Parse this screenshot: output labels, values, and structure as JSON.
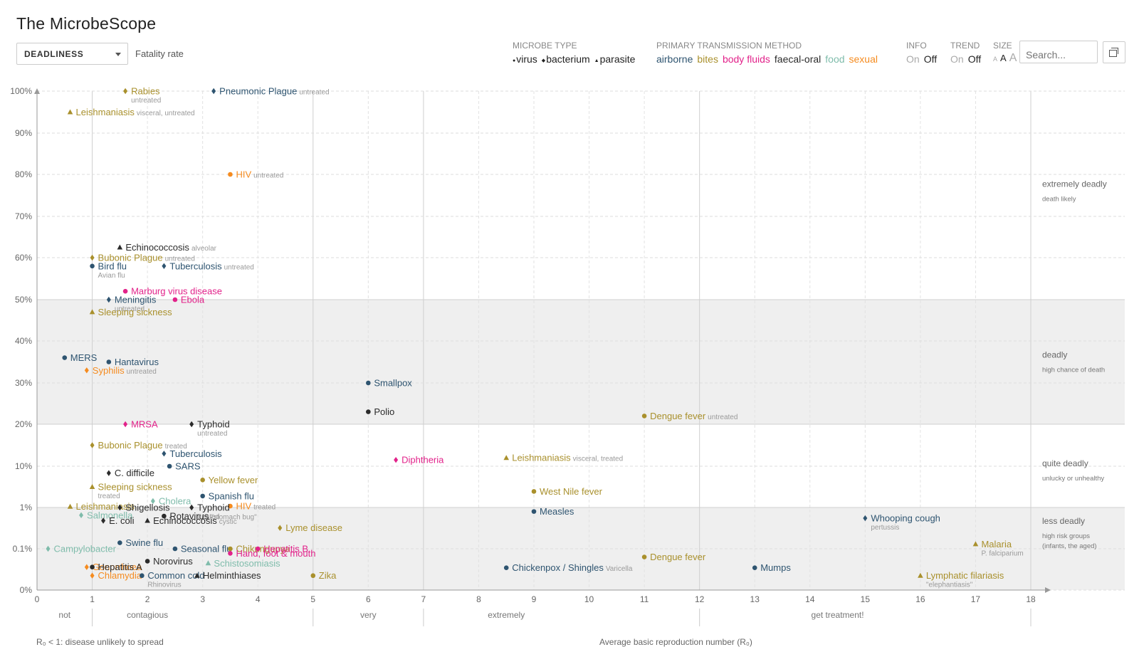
{
  "header": {
    "title": "The MicrobeScope",
    "dropdown_value": "DEADLINESS",
    "dropdown_label": "Fatality rate"
  },
  "filters": {
    "microbe_type": {
      "label": "MICROBE TYPE",
      "items": [
        "virus",
        "bacterium",
        "parasite"
      ]
    },
    "transmission": {
      "label": "PRIMARY TRANSMISSION METHOD",
      "items": [
        {
          "name": "airborne",
          "color": "#2e5470"
        },
        {
          "name": "bites",
          "color": "#a9902c"
        },
        {
          "name": "body fluids",
          "color": "#e2228a"
        },
        {
          "name": "faecal-oral",
          "color": "#2b2b2b"
        },
        {
          "name": "food",
          "color": "#7fbcab"
        },
        {
          "name": "sexual",
          "color": "#f58b1f"
        }
      ]
    },
    "info": {
      "label": "INFO",
      "on": "On",
      "off": "Off"
    },
    "trend": {
      "label": "TREND",
      "on": "On",
      "off": "Off"
    },
    "size": {
      "label": "SIZE",
      "options": [
        "A",
        "A",
        "A"
      ]
    }
  },
  "search": {
    "placeholder": "Search..."
  },
  "bottom": {
    "left": "R₀ < 1: disease unlikely to spread",
    "right": "Average basic reproduction number (R₀)"
  },
  "chart_data": {
    "type": "scatter",
    "title": "The MicrobeScope",
    "xlabel": "Average basic reproduction number (R₀)",
    "ylabel": "Fatality rate",
    "xlim": [
      0,
      18
    ],
    "x_ticks": [
      0,
      1,
      2,
      3,
      4,
      5,
      6,
      7,
      8,
      9,
      10,
      11,
      12,
      13,
      14,
      15,
      16,
      17,
      18
    ],
    "y_ticks": [
      "0%",
      "0.1%",
      "1%",
      "10%",
      "20%",
      "30%",
      "40%",
      "50%",
      "60%",
      "70%",
      "80%",
      "90%",
      "100%"
    ],
    "y_tick_values": [
      0,
      0.1,
      1,
      10,
      20,
      30,
      40,
      50,
      60,
      70,
      80,
      90,
      100
    ],
    "x_band_labels": [
      {
        "text": "not",
        "x": 0.5
      },
      {
        "text": "contagious",
        "x": 2.0
      },
      {
        "text": "very",
        "x": 6.0
      },
      {
        "text": "extremely",
        "x": 8.5
      },
      {
        "text": "get treatment!",
        "x": 14.5
      }
    ],
    "zones": [
      {
        "label": "extremely deadly",
        "sub": "death likely",
        "y_at": 77,
        "shaded": false
      },
      {
        "label": "deadly",
        "sub": "high chance of death",
        "y_at": 36,
        "shaded": true
      },
      {
        "label": "quite deadly",
        "sub": "unlucky or unhealthy",
        "y_at": 10,
        "shaded": false
      },
      {
        "label": "less deadly",
        "sub": "high risk groups (infants, the aged)",
        "y_at": 0.4,
        "shaded": true
      }
    ],
    "points": [
      {
        "name": "Rabies",
        "note": "untreated",
        "below": true,
        "x": 1.6,
        "y": 100,
        "type": "bacterium",
        "transmission": "bites"
      },
      {
        "name": "Pneumonic Plague",
        "note": "untreated",
        "x": 3.2,
        "y": 100,
        "type": "bacterium",
        "transmission": "airborne"
      },
      {
        "name": "Leishmaniasis",
        "note": "visceral, untreated",
        "x": 0.6,
        "y": 95,
        "type": "parasite",
        "transmission": "bites"
      },
      {
        "name": "HIV",
        "note": "untreated",
        "x": 3.5,
        "y": 80,
        "type": "virus",
        "transmission": "sexual"
      },
      {
        "name": "Echinococcosis",
        "note": "alveolar",
        "x": 1.5,
        "y": 62.5,
        "type": "parasite",
        "transmission": "faecal-oral"
      },
      {
        "name": "Bubonic Plague",
        "note": "untreated",
        "x": 1.0,
        "y": 60,
        "type": "bacterium",
        "transmission": "bites"
      },
      {
        "name": "Bird flu",
        "note": "Avian flu",
        "below": true,
        "x": 1.0,
        "y": 58,
        "type": "virus",
        "transmission": "airborne"
      },
      {
        "name": "Tuberculosis",
        "note": "untreated",
        "x": 2.3,
        "y": 58,
        "type": "bacterium",
        "transmission": "airborne"
      },
      {
        "name": "Marburg virus disease",
        "note": "",
        "x": 1.6,
        "y": 52,
        "type": "virus",
        "transmission": "body fluids"
      },
      {
        "name": "Meningitis",
        "note": "untreated",
        "below": true,
        "x": 1.3,
        "y": 50,
        "type": "bacterium",
        "transmission": "airborne"
      },
      {
        "name": "Ebola",
        "note": "",
        "x": 2.5,
        "y": 50,
        "type": "virus",
        "transmission": "body fluids"
      },
      {
        "name": "Sleeping sickness",
        "note": "",
        "x": 1.0,
        "y": 47,
        "type": "parasite",
        "transmission": "bites"
      },
      {
        "name": "MERS",
        "note": "",
        "x": 0.5,
        "y": 36,
        "type": "virus",
        "transmission": "airborne"
      },
      {
        "name": "Hantavirus",
        "note": "",
        "x": 1.3,
        "y": 35,
        "type": "virus",
        "transmission": "airborne"
      },
      {
        "name": "Syphilis",
        "note": "untreated",
        "x": 0.9,
        "y": 33,
        "type": "bacterium",
        "transmission": "sexual"
      },
      {
        "name": "Smallpox",
        "note": "",
        "x": 6.0,
        "y": 30,
        "type": "virus",
        "transmission": "airborne"
      },
      {
        "name": "Polio",
        "note": "",
        "x": 6.0,
        "y": 23,
        "type": "virus",
        "transmission": "faecal-oral"
      },
      {
        "name": "Dengue fever",
        "note": "untreated",
        "x": 11.0,
        "y": 22,
        "type": "virus",
        "transmission": "bites"
      },
      {
        "name": "MRSA",
        "note": "",
        "x": 1.6,
        "y": 20,
        "type": "bacterium",
        "transmission": "body fluids"
      },
      {
        "name": "Typhoid",
        "note": "untreated",
        "below": true,
        "x": 2.8,
        "y": 20,
        "type": "bacterium",
        "transmission": "faecal-oral"
      },
      {
        "name": "Bubonic Plague",
        "note": "treated",
        "x": 1.0,
        "y": 15,
        "type": "bacterium",
        "transmission": "bites"
      },
      {
        "name": "Tuberculosis",
        "note": "",
        "x": 2.3,
        "y": 13,
        "type": "bacterium",
        "transmission": "airborne"
      },
      {
        "name": "Diphtheria",
        "note": "",
        "x": 6.5,
        "y": 11.5,
        "type": "bacterium",
        "transmission": "body fluids"
      },
      {
        "name": "Leishmaniasis",
        "note": "visceral, treated",
        "x": 8.5,
        "y": 12,
        "type": "parasite",
        "transmission": "bites"
      },
      {
        "name": "SARS",
        "note": "",
        "x": 2.4,
        "y": 10,
        "type": "virus",
        "transmission": "airborne"
      },
      {
        "name": "C. difficile",
        "note": "",
        "x": 1.3,
        "y": 8.5,
        "type": "bacterium",
        "transmission": "faecal-oral"
      },
      {
        "name": "Yellow fever",
        "note": "",
        "x": 3.0,
        "y": 7,
        "type": "virus",
        "transmission": "bites"
      },
      {
        "name": "Sleeping sickness",
        "note": "treated",
        "below": true,
        "x": 1.0,
        "y": 5.5,
        "type": "parasite",
        "transmission": "bites"
      },
      {
        "name": "West Nile fever",
        "note": "",
        "x": 9.0,
        "y": 4.5,
        "type": "virus",
        "transmission": "bites"
      },
      {
        "name": "Spanish flu",
        "note": "",
        "x": 3.0,
        "y": 3.5,
        "type": "virus",
        "transmission": "airborne"
      },
      {
        "name": "Cholera",
        "note": "",
        "x": 2.1,
        "y": 2.4,
        "type": "bacterium",
        "transmission": "food"
      },
      {
        "name": "Leishmaniasis",
        "note": "",
        "x": 0.6,
        "y": 1.2,
        "type": "parasite",
        "transmission": "bites"
      },
      {
        "name": "HIV",
        "note": "treated",
        "x": 3.5,
        "y": 1.3,
        "type": "virus",
        "transmission": "sexual"
      },
      {
        "name": "Shigellosis",
        "note": "",
        "x": 1.5,
        "y": 1.0,
        "type": "bacterium",
        "transmission": "faecal-oral"
      },
      {
        "name": "Typhoid",
        "note": "treated",
        "below": true,
        "x": 2.8,
        "y": 1.0,
        "type": "bacterium",
        "transmission": "faecal-oral"
      },
      {
        "name": "Measles",
        "note": "",
        "x": 9.0,
        "y": 0.8,
        "type": "virus",
        "transmission": "airborne"
      },
      {
        "name": "Salmonella",
        "note": "",
        "x": 0.8,
        "y": 0.65,
        "type": "bacterium",
        "transmission": "food"
      },
      {
        "name": "Rotavirus",
        "note": "\"stomach bug\"",
        "x": 2.3,
        "y": 0.62,
        "type": "virus",
        "transmission": "faecal-oral"
      },
      {
        "name": "Whooping cough",
        "note": "pertussis",
        "below": true,
        "x": 15.0,
        "y": 0.55,
        "type": "bacterium",
        "transmission": "airborne"
      },
      {
        "name": "E. coli",
        "note": "",
        "x": 1.2,
        "y": 0.48,
        "type": "bacterium",
        "transmission": "faecal-oral"
      },
      {
        "name": "Echinococcosis",
        "note": "cystic",
        "x": 2.0,
        "y": 0.48,
        "type": "parasite",
        "transmission": "faecal-oral"
      },
      {
        "name": "Lyme disease",
        "note": "",
        "x": 4.4,
        "y": 0.32,
        "type": "bacterium",
        "transmission": "bites"
      },
      {
        "name": "Swine flu",
        "note": "",
        "x": 1.5,
        "y": 0.14,
        "type": "virus",
        "transmission": "airborne"
      },
      {
        "name": "Malaria",
        "note": "P. falciparium",
        "below": true,
        "x": 17.0,
        "y": 0.13,
        "type": "parasite",
        "transmission": "bites"
      },
      {
        "name": "Campylobacter",
        "note": "",
        "x": 0.2,
        "y": 0.1,
        "type": "bacterium",
        "transmission": "food"
      },
      {
        "name": "Seasonal flu",
        "note": "",
        "x": 2.5,
        "y": 0.1,
        "type": "virus",
        "transmission": "airborne"
      },
      {
        "name": "Chikungunya",
        "note": "",
        "x": 3.5,
        "y": 0.1,
        "type": "virus",
        "transmission": "bites"
      },
      {
        "name": "Hepatitis B",
        "note": "",
        "x": 4.0,
        "y": 0.1,
        "type": "virus",
        "transmission": "body fluids"
      },
      {
        "name": "Hand, foot & mouth",
        "note": "",
        "x": 3.5,
        "y": 0.06,
        "type": "virus",
        "transmission": "body fluids"
      },
      {
        "name": "Dengue fever",
        "note": "",
        "x": 11.0,
        "y": 0.04,
        "type": "virus",
        "transmission": "bites"
      },
      {
        "name": "Norovirus",
        "note": "",
        "x": 2.0,
        "y": 0.025,
        "type": "virus",
        "transmission": "faecal-oral"
      },
      {
        "name": "Schistosomiasis",
        "note": "",
        "x": 3.1,
        "y": 0.02,
        "type": "parasite",
        "transmission": "food"
      },
      {
        "name": "Chickenpox / Shingles",
        "note": "Varicella",
        "x": 8.5,
        "y": 0.012,
        "type": "virus",
        "transmission": "airborne"
      },
      {
        "name": "Mumps",
        "note": "",
        "x": 13.0,
        "y": 0.012,
        "type": "virus",
        "transmission": "airborne"
      },
      {
        "name": "Gonorrhoea",
        "note": "",
        "x": 0.9,
        "y": 0.013,
        "type": "bacterium",
        "transmission": "sexual"
      },
      {
        "name": "Hepatitis A",
        "note": "",
        "x": 1.0,
        "y": 0.013,
        "type": "virus",
        "transmission": "faecal-oral"
      },
      {
        "name": "Chlamydia",
        "note": "",
        "x": 1.0,
        "y": 0.005,
        "type": "bacterium",
        "transmission": "sexual"
      },
      {
        "name": "Common cold",
        "note": "Rhinovirus",
        "below": true,
        "x": 1.9,
        "y": 0.005,
        "type": "virus",
        "transmission": "airborne"
      },
      {
        "name": "Helminthiases",
        "note": "",
        "x": 2.9,
        "y": 0.005,
        "type": "parasite",
        "transmission": "faecal-oral"
      },
      {
        "name": "Zika",
        "note": "",
        "x": 5.0,
        "y": 0.005,
        "type": "virus",
        "transmission": "bites"
      },
      {
        "name": "Lymphatic filariasis",
        "note": "\"elephantiasis\"",
        "below": true,
        "x": 16.0,
        "y": 0.005,
        "type": "parasite",
        "transmission": "bites"
      }
    ]
  }
}
